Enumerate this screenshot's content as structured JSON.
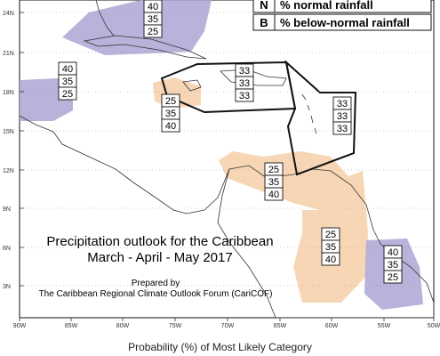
{
  "map": {
    "colors": {
      "above": "#aaa6d4",
      "below": "#f6d2ad",
      "land_outline": "#333333",
      "border": "#111111"
    },
    "longitude_ticks": [
      "90W",
      "85W",
      "80W",
      "75W",
      "70W",
      "65W",
      "60W",
      "55W",
      "50W"
    ],
    "latitude_ticks": [
      "24N",
      "21N",
      "18N",
      "15N",
      "12N",
      "9N",
      "6N",
      "3N"
    ],
    "legend": [
      {
        "key": "N",
        "label": "% normal rainfall"
      },
      {
        "key": "B",
        "label": "% below-normal rainfall"
      }
    ],
    "regions": [
      {
        "name": "Bahamas",
        "values": [
          "40",
          "35",
          "25"
        ],
        "category": "above"
      },
      {
        "name": "Central America north",
        "values": [
          "40",
          "35",
          "25"
        ],
        "category": "above"
      },
      {
        "name": "Jamaica south",
        "values": [
          "25",
          "35",
          "40"
        ],
        "category": "below"
      },
      {
        "name": "Greater Antilles",
        "values": [
          "33",
          "33",
          "33"
        ],
        "category": "normal"
      },
      {
        "name": "Lesser Antilles",
        "values": [
          "33",
          "33",
          "33"
        ],
        "category": "normal"
      },
      {
        "name": "ABC Islands",
        "values": [
          "25",
          "35",
          "40"
        ],
        "category": "below"
      },
      {
        "name": "Guyana",
        "values": [
          "25",
          "35",
          "40"
        ],
        "category": "below"
      },
      {
        "name": "French Guiana",
        "values": [
          "40",
          "35",
          "25"
        ],
        "category": "above"
      }
    ],
    "title": {
      "line1": "Precipitation outlook for the Caribbean",
      "line2": "March - April - May 2017",
      "line3": "Prepared by",
      "line4": "The Caribbean Regional Climate Outlook Forum (CariCOF)"
    }
  },
  "footer": "Probability (%) of Most Likely Category"
}
